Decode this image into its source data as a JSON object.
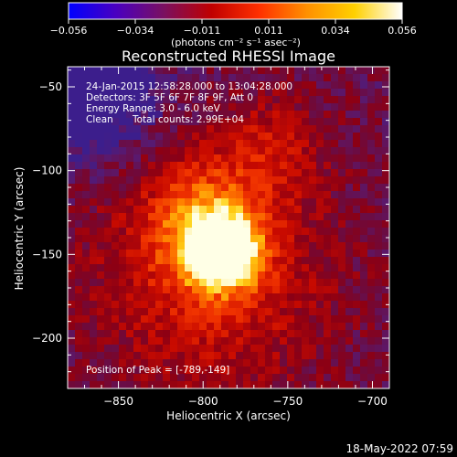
{
  "colorbar": {
    "ticks": [
      "-0.056",
      "-0.034",
      "-0.011",
      "0.011",
      "0.034",
      "0.056"
    ],
    "unit_label": "(photons cm⁻² s⁻¹ asec⁻²)",
    "colors": [
      "#0000ff",
      "#4a00c0",
      "#7a1060",
      "#c00000",
      "#ff3000",
      "#ff9000",
      "#ffd000",
      "#ffffff"
    ]
  },
  "title": "Reconstructed RHESSI Image",
  "annotations": {
    "line1": "24-Jan-2015 12:58:28.000 to 13:04:28.000",
    "line2": "Detectors: 3F 5F 6F 7F 8F 9F, Att 0",
    "line3": "Energy Range: 3.0 - 6.0 keV",
    "line4_left": "Clean",
    "line4_right": "Total counts: 2.99E+04",
    "peak": "Position of Peak = [-789,-149]"
  },
  "footer_timestamp": "18-May-2022 07:59",
  "chart_data": {
    "type": "heatmap",
    "title": "Reconstructed RHESSI Image",
    "xlabel": "Heliocentric X (arcsec)",
    "ylabel": "Heliocentric Y (arcsec)",
    "xlim": [
      -880,
      -690
    ],
    "ylim": [
      -230,
      -38
    ],
    "x_ticks": [
      -850,
      -800,
      -750,
      -700
    ],
    "y_ticks": [
      -50,
      -100,
      -150,
      -200
    ],
    "x_tick_labels": [
      "−850",
      "−800",
      "−750",
      "−700"
    ],
    "y_tick_labels": [
      "−50",
      "−100",
      "−150",
      "−200"
    ],
    "value_range": [
      -0.056,
      0.056
    ],
    "peak": {
      "x": -789,
      "y": -149
    },
    "sources": [
      {
        "x": -789,
        "y": -149,
        "sigma": 14,
        "amplitude": 1.0
      },
      {
        "x": -800,
        "y": -128,
        "sigma": 22,
        "amplitude": 0.35
      },
      {
        "x": -795,
        "y": -160,
        "sigma": 48,
        "amplitude": 0.35
      },
      {
        "x": -760,
        "y": -85,
        "sigma": 22,
        "amplitude": 0.2
      }
    ],
    "negative_region": {
      "x": -870,
      "y": -50,
      "sigma": 28,
      "amplitude": -0.45
    },
    "background_level": 0.18
  }
}
